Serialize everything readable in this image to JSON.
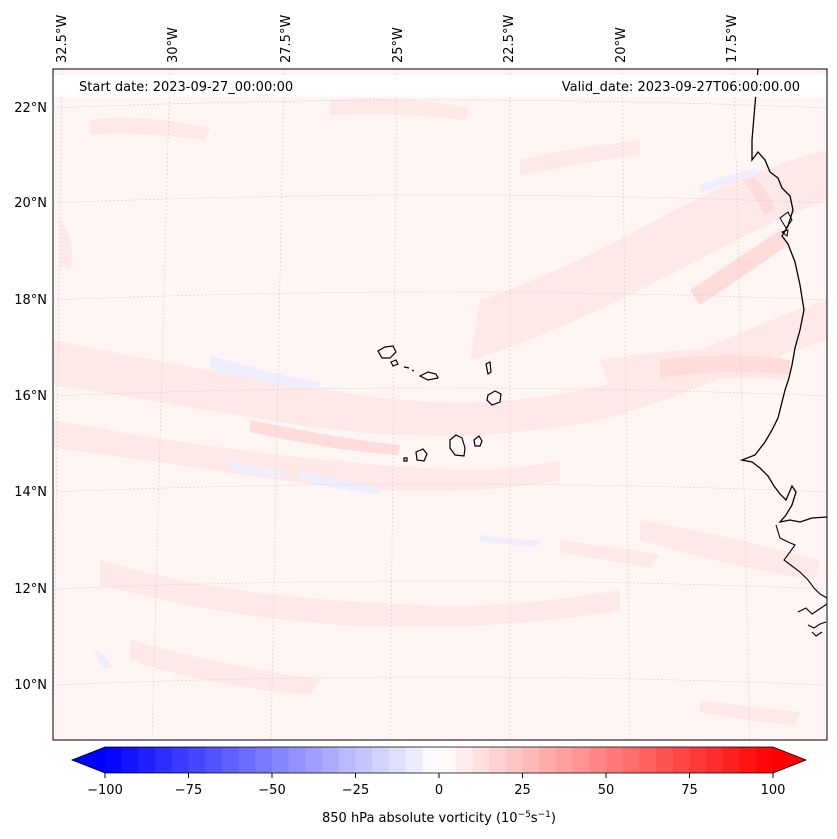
{
  "map": {
    "start_date": "Start date: 2023-09-27_00:00:00",
    "valid_date": "Valid_date: 2023-09-27T06:00:00.00",
    "lon_labels": [
      "32.5°W",
      "30°W",
      "27.5°W",
      "25°W",
      "22.5°W",
      "20°W",
      "17.5°W"
    ],
    "lat_labels": [
      "22°N",
      "20°N",
      "18°N",
      "16°N",
      "14°N",
      "12°N",
      "10°N"
    ]
  },
  "colorbar": {
    "label": "850 hPa absolute vorticity (10",
    "label_exp1": "−5",
    "label_mid": "s",
    "label_exp2": "−1",
    "label_end": ")",
    "ticks": [
      "−100",
      "−75",
      "−50",
      "−25",
      "0",
      "25",
      "50",
      "75",
      "100"
    ],
    "min_color": "#0000ff",
    "mid_color": "#ffffff",
    "max_color": "#ff0000"
  },
  "colors": {
    "field_base": "#fff5f5",
    "field_pos_light": "#ffe6e6",
    "field_pos_medium": "#ffdada",
    "field_neg_light": "#f0f0ff",
    "coastline": "#000000"
  }
}
